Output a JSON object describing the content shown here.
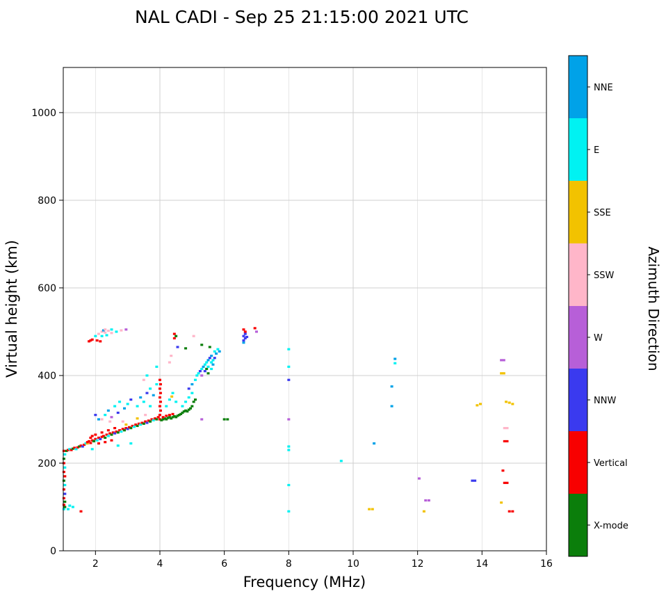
{
  "title": "NAL CADI - Sep 25 21:15:00 2021 UTC",
  "chart_data": {
    "type": "scatter",
    "title": "NAL CADI - Sep 25 21:15:00 2021 UTC",
    "xlabel": "Frequency (MHz)",
    "ylabel": "Virtual height (km)",
    "xlim": [
      1,
      16
    ],
    "ylim": [
      0,
      1103
    ],
    "xticks": [
      2,
      4,
      6,
      8,
      10,
      12,
      14,
      16
    ],
    "yticks": [
      0,
      200,
      400,
      600,
      800,
      1000
    ],
    "grid": true,
    "colorbar": {
      "label": "Azimuth Direction",
      "categories": [
        {
          "name": "NNE",
          "color": "#00A2E8"
        },
        {
          "name": "E",
          "color": "#00F2F2"
        },
        {
          "name": "SSE",
          "color": "#F2C200"
        },
        {
          "name": "SSW",
          "color": "#FFB6C9"
        },
        {
          "name": "W",
          "color": "#B75FD8"
        },
        {
          "name": "NNW",
          "color": "#3A3AEF"
        },
        {
          "name": "Vertical",
          "color": "#F80000"
        },
        {
          "name": "X-mode",
          "color": "#0B7E0B"
        }
      ]
    },
    "point_fields": [
      "frequency_mhz",
      "virtual_height_km",
      "category_index"
    ],
    "points": [
      [
        1.02,
        95,
        1
      ],
      [
        1.05,
        100,
        7
      ],
      [
        1.02,
        105,
        6
      ],
      [
        1.05,
        112,
        7
      ],
      [
        1.02,
        120,
        6
      ],
      [
        1.05,
        130,
        5
      ],
      [
        1.02,
        140,
        6
      ],
      [
        1.05,
        150,
        1
      ],
      [
        1.02,
        160,
        7
      ],
      [
        1.05,
        170,
        6
      ],
      [
        1.02,
        180,
        6
      ],
      [
        1.05,
        190,
        1
      ],
      [
        1.02,
        200,
        6
      ],
      [
        1.02,
        210,
        7
      ],
      [
        1.05,
        220,
        1
      ],
      [
        1.02,
        228,
        6
      ],
      [
        1.15,
        95,
        1
      ],
      [
        1.2,
        103,
        1
      ],
      [
        1.3,
        100,
        1
      ],
      [
        1.55,
        90,
        6
      ],
      [
        1.1,
        228,
        7
      ],
      [
        1.15,
        230,
        6
      ],
      [
        1.2,
        232,
        1
      ],
      [
        1.25,
        230,
        6
      ],
      [
        1.3,
        233,
        7
      ],
      [
        1.35,
        235,
        6
      ],
      [
        1.4,
        232,
        1
      ],
      [
        1.45,
        236,
        6
      ],
      [
        1.5,
        238,
        7
      ],
      [
        1.55,
        240,
        6
      ],
      [
        1.6,
        238,
        5
      ],
      [
        1.65,
        242,
        6
      ],
      [
        1.7,
        245,
        1
      ],
      [
        1.75,
        245,
        2
      ],
      [
        1.75,
        248,
        6
      ],
      [
        1.8,
        250,
        6
      ],
      [
        1.85,
        246,
        6
      ],
      [
        1.85,
        258,
        6
      ],
      [
        1.9,
        252,
        6
      ],
      [
        1.9,
        232,
        1
      ],
      [
        1.9,
        262,
        6
      ],
      [
        1.95,
        250,
        7
      ],
      [
        2.0,
        255,
        6
      ],
      [
        2.0,
        265,
        6
      ],
      [
        2.05,
        252,
        1
      ],
      [
        2.1,
        258,
        6
      ],
      [
        2.1,
        245,
        6
      ],
      [
        2.15,
        255,
        5
      ],
      [
        2.2,
        260,
        6
      ],
      [
        2.2,
        270,
        6
      ],
      [
        2.25,
        262,
        6
      ],
      [
        2.3,
        258,
        7
      ],
      [
        2.3,
        248,
        6
      ],
      [
        2.35,
        265,
        6
      ],
      [
        2.4,
        262,
        1
      ],
      [
        2.4,
        275,
        6
      ],
      [
        2.45,
        268,
        6
      ],
      [
        2.5,
        265,
        7
      ],
      [
        2.5,
        252,
        6
      ],
      [
        2.55,
        270,
        6
      ],
      [
        2.6,
        268,
        5
      ],
      [
        2.6,
        280,
        6
      ],
      [
        2.65,
        272,
        6
      ],
      [
        2.7,
        270,
        7
      ],
      [
        2.7,
        240,
        1
      ],
      [
        2.75,
        275,
        6
      ],
      [
        2.8,
        272,
        1
      ],
      [
        2.85,
        278,
        6
      ],
      [
        2.85,
        295,
        3
      ],
      [
        2.9,
        275,
        7
      ],
      [
        2.95,
        280,
        6
      ],
      [
        2.95,
        288,
        2
      ],
      [
        3.0,
        278,
        5
      ],
      [
        3.05,
        282,
        6
      ],
      [
        3.1,
        280,
        7
      ],
      [
        3.1,
        245,
        1
      ],
      [
        3.15,
        285,
        6
      ],
      [
        3.2,
        283,
        1
      ],
      [
        2.0,
        310,
        5
      ],
      [
        2.1,
        300,
        0
      ],
      [
        2.2,
        300,
        3
      ],
      [
        2.3,
        310,
        1
      ],
      [
        2.4,
        320,
        0
      ],
      [
        2.45,
        295,
        3
      ],
      [
        2.5,
        305,
        4
      ],
      [
        2.6,
        330,
        1
      ],
      [
        2.7,
        315,
        5
      ],
      [
        2.75,
        340,
        1
      ],
      [
        2.9,
        325,
        0
      ],
      [
        3.0,
        335,
        1
      ],
      [
        3.1,
        345,
        5
      ],
      [
        3.25,
        288,
        6
      ],
      [
        3.3,
        285,
        7
      ],
      [
        3.3,
        302,
        2
      ],
      [
        3.35,
        290,
        6
      ],
      [
        3.4,
        288,
        1
      ],
      [
        3.45,
        292,
        6
      ],
      [
        3.5,
        290,
        7
      ],
      [
        3.55,
        295,
        6
      ],
      [
        3.55,
        310,
        3
      ],
      [
        3.6,
        292,
        5
      ],
      [
        3.65,
        297,
        6
      ],
      [
        3.7,
        295,
        7
      ],
      [
        3.75,
        300,
        6
      ],
      [
        3.8,
        298,
        1
      ],
      [
        3.85,
        302,
        6
      ],
      [
        3.9,
        300,
        7
      ],
      [
        3.95,
        305,
        6
      ],
      [
        3.3,
        330,
        1
      ],
      [
        3.4,
        350,
        0
      ],
      [
        3.5,
        340,
        1
      ],
      [
        3.6,
        360,
        5
      ],
      [
        3.7,
        370,
        1
      ],
      [
        3.7,
        330,
        1
      ],
      [
        3.8,
        355,
        0
      ],
      [
        3.9,
        380,
        1
      ],
      [
        3.5,
        390,
        3
      ],
      [
        3.6,
        400,
        1
      ],
      [
        3.9,
        420,
        1
      ],
      [
        4.0,
        300,
        6
      ],
      [
        4.0,
        310,
        6
      ],
      [
        4.02,
        320,
        6
      ],
      [
        4.0,
        330,
        6
      ],
      [
        4.02,
        340,
        6
      ],
      [
        4.0,
        350,
        6
      ],
      [
        4.02,
        360,
        6
      ],
      [
        4.0,
        370,
        6
      ],
      [
        4.02,
        380,
        6
      ],
      [
        4.0,
        390,
        6
      ],
      [
        4.05,
        298,
        7
      ],
      [
        4.1,
        300,
        7
      ],
      [
        4.15,
        302,
        7
      ],
      [
        4.2,
        300,
        7
      ],
      [
        4.25,
        303,
        7
      ],
      [
        4.3,
        305,
        7
      ],
      [
        4.35,
        302,
        7
      ],
      [
        4.4,
        305,
        7
      ],
      [
        4.45,
        307,
        7
      ],
      [
        4.5,
        305,
        7
      ],
      [
        4.55,
        308,
        7
      ],
      [
        4.6,
        310,
        7
      ],
      [
        4.1,
        305,
        6
      ],
      [
        4.2,
        308,
        6
      ],
      [
        4.3,
        310,
        6
      ],
      [
        4.4,
        312,
        6
      ],
      [
        4.2,
        330,
        1
      ],
      [
        4.3,
        345,
        1
      ],
      [
        4.37,
        352,
        2
      ],
      [
        4.4,
        360,
        1
      ],
      [
        4.5,
        340,
        1
      ],
      [
        4.3,
        430,
        3
      ],
      [
        4.35,
        445,
        3
      ],
      [
        4.45,
        485,
        6
      ],
      [
        4.45,
        495,
        6
      ],
      [
        4.5,
        490,
        7
      ],
      [
        4.55,
        465,
        5
      ],
      [
        4.65,
        312,
        7
      ],
      [
        4.7,
        315,
        7
      ],
      [
        4.75,
        318,
        7
      ],
      [
        4.8,
        320,
        7
      ],
      [
        4.85,
        318,
        7
      ],
      [
        4.9,
        322,
        7
      ],
      [
        4.95,
        325,
        7
      ],
      [
        5.0,
        330,
        7
      ],
      [
        5.05,
        340,
        7
      ],
      [
        5.1,
        345,
        7
      ],
      [
        4.7,
        330,
        1
      ],
      [
        4.8,
        340,
        1
      ],
      [
        4.9,
        350,
        1
      ],
      [
        5.0,
        360,
        1
      ],
      [
        4.9,
        370,
        5
      ],
      [
        5.0,
        380,
        0
      ],
      [
        5.1,
        390,
        1
      ],
      [
        5.15,
        400,
        1
      ],
      [
        4.8,
        462,
        7
      ],
      [
        5.05,
        490,
        3
      ],
      [
        5.2,
        405,
        1
      ],
      [
        5.25,
        410,
        5
      ],
      [
        5.3,
        400,
        4
      ],
      [
        5.3,
        415,
        1
      ],
      [
        5.35,
        420,
        0
      ],
      [
        5.4,
        410,
        5
      ],
      [
        5.4,
        425,
        1
      ],
      [
        5.45,
        415,
        7
      ],
      [
        5.45,
        430,
        1
      ],
      [
        5.5,
        405,
        7
      ],
      [
        5.5,
        420,
        1
      ],
      [
        5.5,
        435,
        0
      ],
      [
        5.55,
        440,
        5
      ],
      [
        5.6,
        415,
        1
      ],
      [
        5.6,
        430,
        1
      ],
      [
        5.6,
        445,
        0
      ],
      [
        5.65,
        425,
        0
      ],
      [
        5.65,
        435,
        1
      ],
      [
        5.7,
        440,
        5
      ],
      [
        5.7,
        455,
        1
      ],
      [
        5.75,
        450,
        0
      ],
      [
        5.3,
        470,
        7
      ],
      [
        5.55,
        465,
        7
      ],
      [
        5.3,
        300,
        4
      ],
      [
        5.8,
        460,
        1
      ],
      [
        5.85,
        455,
        0
      ],
      [
        6.0,
        300,
        7
      ],
      [
        6.1,
        300,
        7
      ],
      [
        6.6,
        475,
        0
      ],
      [
        6.6,
        480,
        5
      ],
      [
        6.6,
        490,
        5
      ],
      [
        6.6,
        505,
        6
      ],
      [
        6.65,
        485,
        5
      ],
      [
        6.65,
        495,
        5
      ],
      [
        6.65,
        500,
        6
      ],
      [
        6.7,
        488,
        5
      ],
      [
        6.95,
        508,
        6
      ],
      [
        7.0,
        500,
        4
      ],
      [
        8.0,
        90,
        1
      ],
      [
        8.0,
        150,
        1
      ],
      [
        8.0,
        230,
        1
      ],
      [
        8.0,
        238,
        1
      ],
      [
        8.0,
        300,
        4
      ],
      [
        8.0,
        390,
        5
      ],
      [
        8.0,
        420,
        1
      ],
      [
        8.0,
        460,
        1
      ],
      [
        9.63,
        205,
        1
      ],
      [
        10.5,
        95,
        2
      ],
      [
        10.6,
        95,
        2
      ],
      [
        10.65,
        245,
        0
      ],
      [
        11.2,
        330,
        0
      ],
      [
        11.2,
        375,
        0
      ],
      [
        11.3,
        428,
        1
      ],
      [
        11.3,
        438,
        0
      ],
      [
        12.05,
        165,
        4
      ],
      [
        12.2,
        90,
        2
      ],
      [
        12.25,
        115,
        4
      ],
      [
        12.35,
        115,
        4
      ],
      [
        13.7,
        160,
        5
      ],
      [
        13.78,
        160,
        5
      ],
      [
        13.85,
        332,
        2
      ],
      [
        13.95,
        335,
        2
      ],
      [
        14.6,
        110,
        2
      ],
      [
        14.6,
        405,
        2
      ],
      [
        14.68,
        405,
        2
      ],
      [
        14.6,
        435,
        4
      ],
      [
        14.68,
        435,
        4
      ],
      [
        14.65,
        183,
        6
      ],
      [
        14.7,
        155,
        6
      ],
      [
        14.78,
        155,
        6
      ],
      [
        14.7,
        250,
        6
      ],
      [
        14.78,
        250,
        6
      ],
      [
        14.7,
        280,
        3
      ],
      [
        14.78,
        280,
        3
      ],
      [
        14.75,
        340,
        2
      ],
      [
        14.85,
        338,
        2
      ],
      [
        14.95,
        335,
        2
      ],
      [
        14.85,
        90,
        6
      ],
      [
        14.95,
        90,
        6
      ],
      [
        1.8,
        478,
        6
      ],
      [
        1.85,
        480,
        6
      ],
      [
        1.9,
        482,
        6
      ],
      [
        2.05,
        480,
        6
      ],
      [
        2.15,
        478,
        6
      ],
      [
        2.0,
        490,
        1
      ],
      [
        2.1,
        495,
        3
      ],
      [
        2.2,
        490,
        1
      ],
      [
        2.2,
        500,
        3
      ],
      [
        2.25,
        503,
        0
      ],
      [
        2.3,
        498,
        3
      ],
      [
        2.3,
        505,
        3
      ],
      [
        2.35,
        492,
        1
      ],
      [
        2.4,
        502,
        3
      ],
      [
        2.5,
        497,
        3
      ],
      [
        2.5,
        505,
        1
      ],
      [
        2.65,
        500,
        1
      ],
      [
        2.8,
        503,
        3
      ],
      [
        2.95,
        505,
        4
      ]
    ]
  }
}
